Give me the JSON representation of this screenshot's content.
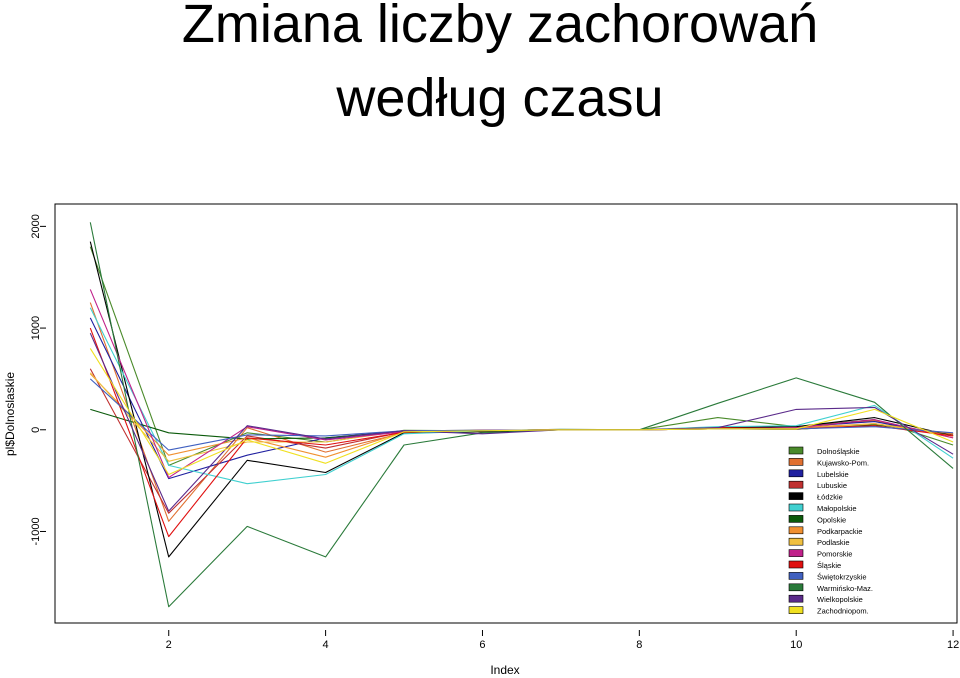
{
  "slide": {
    "title_line1": "Zmiana liczby zachorowań",
    "title_line2": "według czasu"
  },
  "chart_data": {
    "type": "line",
    "title": "",
    "xlabel": "Index",
    "ylabel": "pl$Dolnoslaskie",
    "xlim": [
      0.55,
      12.05
    ],
    "ylim": [
      -1900,
      2220
    ],
    "xticks": [
      2,
      4,
      6,
      8,
      10,
      12
    ],
    "yticks": [
      -1000,
      0,
      1000,
      2000
    ],
    "legend_position": "bottom-right",
    "x": [
      1,
      2,
      3,
      4,
      5,
      6,
      7,
      8,
      9,
      10,
      11,
      12
    ],
    "series": [
      {
        "name": "Dolnośląskie",
        "color": "#4a8a2a",
        "values": [
          1800,
          -350,
          -30,
          -120,
          -5,
          -10,
          0,
          0,
          120,
          30,
          100,
          -150
        ]
      },
      {
        "name": "Kujawsko-Pom.",
        "color": "#e07030",
        "values": [
          1250,
          -900,
          20,
          -220,
          -30,
          -10,
          5,
          0,
          10,
          20,
          90,
          -80
        ]
      },
      {
        "name": "Lubelskie",
        "color": "#2020a0",
        "values": [
          1100,
          -480,
          -250,
          -80,
          -10,
          -5,
          0,
          0,
          20,
          30,
          80,
          -60
        ]
      },
      {
        "name": "Lubuskie",
        "color": "#c03030",
        "values": [
          600,
          -820,
          -60,
          -180,
          -20,
          -5,
          0,
          0,
          10,
          5,
          60,
          -50
        ]
      },
      {
        "name": "Łódzkie",
        "color": "#000000",
        "values": [
          1850,
          -1250,
          -300,
          -420,
          -30,
          -20,
          0,
          0,
          20,
          30,
          120,
          -60
        ]
      },
      {
        "name": "Małopolskie",
        "color": "#40d0d0",
        "values": [
          1200,
          -350,
          -530,
          -440,
          -40,
          -10,
          5,
          0,
          30,
          40,
          240,
          -280
        ]
      },
      {
        "name": "Opolskie",
        "color": "#0a5a0a",
        "values": [
          200,
          -30,
          -90,
          -80,
          -15,
          -5,
          0,
          0,
          10,
          5,
          50,
          -40
        ]
      },
      {
        "name": "Podkarpackie",
        "color": "#f09030",
        "values": [
          550,
          -250,
          -80,
          -270,
          -20,
          -5,
          0,
          0,
          10,
          20,
          60,
          -40
        ]
      },
      {
        "name": "Podlaskie",
        "color": "#f0c040",
        "values": [
          560,
          -310,
          -120,
          -120,
          -10,
          -5,
          0,
          0,
          10,
          5,
          60,
          -60
        ]
      },
      {
        "name": "Pomorskie",
        "color": "#c0208a",
        "values": [
          1380,
          -470,
          30,
          -100,
          -20,
          -5,
          0,
          0,
          10,
          20,
          100,
          -80
        ]
      },
      {
        "name": "Śląskie",
        "color": "#e01010",
        "values": [
          1000,
          -1050,
          -80,
          -150,
          -25,
          -5,
          0,
          0,
          20,
          10,
          40,
          -60
        ]
      },
      {
        "name": "Świętokrzyskie",
        "color": "#4060c0",
        "values": [
          500,
          -200,
          -50,
          -60,
          -10,
          -5,
          0,
          0,
          10,
          10,
          30,
          -30
        ]
      },
      {
        "name": "Warmińsko-Maz.",
        "color": "#2a7a3a",
        "values": [
          2040,
          -1740,
          -950,
          -1250,
          -150,
          -30,
          0,
          0,
          260,
          510,
          270,
          -380
        ]
      },
      {
        "name": "Wielkopolskie",
        "color": "#5a2a8a",
        "values": [
          950,
          -800,
          40,
          -90,
          -10,
          -40,
          0,
          0,
          20,
          200,
          220,
          -240
        ]
      },
      {
        "name": "Zachodniopom.",
        "color": "#f0e020",
        "values": [
          800,
          -440,
          -100,
          -330,
          -20,
          -10,
          0,
          0,
          10,
          10,
          200,
          -120
        ]
      }
    ]
  }
}
